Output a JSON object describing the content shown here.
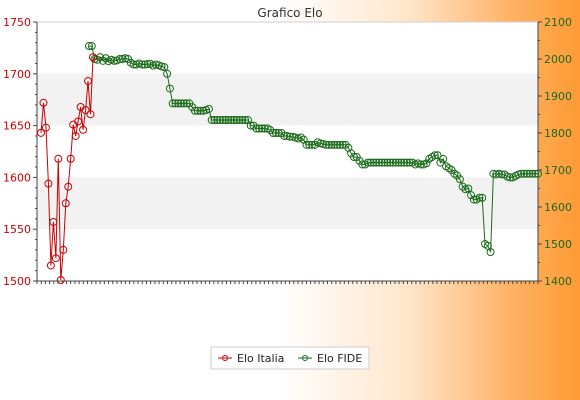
{
  "chart_data": {
    "type": "line",
    "title": "Grafico Elo",
    "left_axis": {
      "ylim": [
        1500,
        1750
      ],
      "ticks": [
        1500,
        1550,
        1600,
        1650,
        1700,
        1750
      ],
      "color": "#cc0000"
    },
    "right_axis": {
      "ylim": [
        1400,
        2100
      ],
      "ticks": [
        1400,
        1500,
        1600,
        1700,
        1800,
        1900,
        2000,
        2100
      ],
      "color": "#1a6b1a"
    },
    "grid": "alternating horizontal bands",
    "legend_position": "bottom",
    "series": [
      {
        "name": "Elo Italia",
        "axis": "left",
        "color": "#cc0000",
        "values": [
          1643,
          1672,
          1648,
          1594,
          1515,
          1557,
          1522,
          1618,
          1501,
          1530,
          1575,
          1591,
          1618,
          1651,
          1640,
          1654,
          1668,
          1646,
          1665,
          1693,
          1661,
          1716
        ]
      },
      {
        "name": "Elo FIDE",
        "axis": "right",
        "color": "#1a6b1a",
        "values": [
          2035,
          2035,
          2000,
          1998,
          2005,
          1995,
          2002,
          1994,
          1998,
          1995,
          1996,
          2000,
          2000,
          2002,
          2000,
          1990,
          1985,
          1985,
          1988,
          1985,
          1985,
          1986,
          1987,
          1982,
          1985,
          1983,
          1980,
          1978,
          1960,
          1920,
          1880,
          1880,
          1880,
          1880,
          1880,
          1880,
          1880,
          1870,
          1860,
          1860,
          1860,
          1860,
          1862,
          1865,
          1835,
          1835,
          1835,
          1835,
          1835,
          1835,
          1835,
          1835,
          1835,
          1835,
          1835,
          1835,
          1835,
          1835,
          1820,
          1820,
          1812,
          1812,
          1812,
          1812,
          1812,
          1808,
          1800,
          1800,
          1800,
          1800,
          1792,
          1792,
          1790,
          1790,
          1788,
          1785,
          1788,
          1782,
          1768,
          1768,
          1768,
          1768,
          1775,
          1772,
          1770,
          1768,
          1768,
          1768,
          1768,
          1768,
          1768,
          1768,
          1768,
          1760,
          1745,
          1735,
          1735,
          1725,
          1715,
          1715,
          1720,
          1720,
          1720,
          1720,
          1720,
          1720,
          1720,
          1720,
          1720,
          1720,
          1720,
          1720,
          1720,
          1720,
          1720,
          1720,
          1720,
          1715,
          1718,
          1715,
          1715,
          1718,
          1730,
          1735,
          1740,
          1740,
          1720,
          1730,
          1710,
          1705,
          1700,
          1690,
          1685,
          1675,
          1655,
          1648,
          1650,
          1632,
          1620,
          1620,
          1625,
          1625,
          1500,
          1495,
          1478,
          1690,
          1688,
          1690,
          1688,
          1688,
          1682,
          1680,
          1680,
          1684,
          1688,
          1690,
          1690,
          1690,
          1690,
          1690,
          1690,
          1690
        ]
      }
    ]
  }
}
